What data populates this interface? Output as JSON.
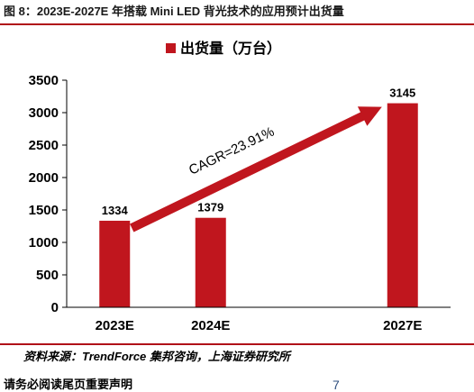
{
  "figure_title": "图 8：2023E-2027E 年搭载 Mini LED 背光技术的应用预计出货量",
  "source_text": "资料来源：TrendForce 集邦咨询，上海证券研究所",
  "footer_text": "请务必阅读尾页重要声明",
  "page_number": "7",
  "chart_data": {
    "type": "bar",
    "categories": [
      "2023E",
      "2024E",
      "",
      "2027E"
    ],
    "series": [
      {
        "name": "出货量（万台）",
        "values": [
          1334,
          1379,
          null,
          3145
        ],
        "color": "#c0161e"
      }
    ],
    "data_labels": [
      "1334",
      "1379",
      "",
      "3145"
    ],
    "ylim": [
      0,
      3500
    ],
    "yticks": [
      0,
      500,
      1000,
      1500,
      2000,
      2500,
      3000,
      3500
    ],
    "grid": false,
    "legend": "top-center",
    "annotation": {
      "text": "CAGR=23.91%",
      "from_category": "2023E",
      "to_category": "2027E"
    }
  }
}
